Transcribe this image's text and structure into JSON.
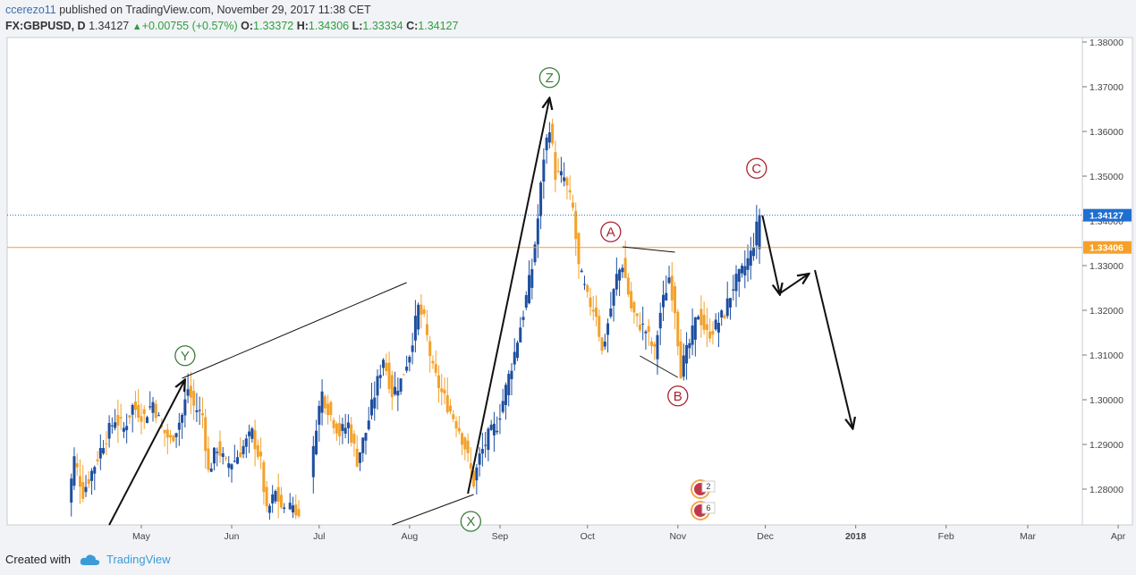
{
  "header": {
    "author": "ccerezo11",
    "published": "published on TradingView.com, November 29, 2017 11:38 CET",
    "symbol": "FX:GBPUSD, D",
    "last": "1.34127",
    "change": "+0.00755 (+0.57%)",
    "o_label": "O:",
    "o": "1.33372",
    "h_label": "H:",
    "h": "1.34306",
    "l_label": "L:",
    "l": "1.33334",
    "c_label": "C:",
    "c": "1.34127"
  },
  "footer": {
    "created_with": "Created with",
    "brand": "TradingView"
  },
  "colors": {
    "up": "#1e4fa0",
    "down": "#f4a12a",
    "green_label": "#3a7d3a",
    "red_label": "#a8232e",
    "price_line": "#1e6fd0",
    "level_line": "#f4a12a"
  },
  "chart_data": {
    "type": "candlestick",
    "symbol": "FX:GBPUSD",
    "interval": "D",
    "ylim": [
      1.272,
      1.381
    ],
    "y_ticks": [
      "1.28000",
      "1.29000",
      "1.30000",
      "1.31000",
      "1.32000",
      "1.33000",
      "1.34000",
      "1.35000",
      "1.36000",
      "1.37000",
      "1.38000"
    ],
    "x_ticks": [
      {
        "label": "May",
        "day": 30
      },
      {
        "label": "Jun",
        "day": 61
      },
      {
        "label": "Jul",
        "day": 91
      },
      {
        "label": "Aug",
        "day": 122
      },
      {
        "label": "Sep",
        "day": 153
      },
      {
        "label": "Oct",
        "day": 183
      },
      {
        "label": "Nov",
        "day": 214
      },
      {
        "label": "Dec",
        "day": 244
      },
      {
        "label": "2018",
        "day": 275
      },
      {
        "label": "Feb",
        "day": 306
      },
      {
        "label": "Mar",
        "day": 334
      },
      {
        "label": "Apr",
        "day": 365
      }
    ],
    "last_price": {
      "label": "1.34127",
      "value": 1.34127
    },
    "level": {
      "label": "1.33406",
      "value": 1.33406
    },
    "wave_labels": [
      {
        "text": "Y",
        "day": 45,
        "price": 1.30985,
        "color": "green"
      },
      {
        "text": "X",
        "day": 143,
        "price": 1.2728,
        "color": "green"
      },
      {
        "text": "Z",
        "day": 170,
        "price": 1.37205,
        "color": "green"
      },
      {
        "text": "A",
        "day": 191,
        "price": 1.33755,
        "color": "red"
      },
      {
        "text": "B",
        "day": 214,
        "price": 1.30085,
        "color": "red"
      },
      {
        "text": "C",
        "day": 241,
        "price": 1.35175,
        "color": "red"
      }
    ],
    "trend_lines": [
      {
        "from": {
          "day": 19,
          "price": 1.272
        },
        "to": {
          "day": 45,
          "price": 1.3045
        },
        "arrow": true
      },
      {
        "from": {
          "day": 44,
          "price": 1.3048
        },
        "to": {
          "day": 121,
          "price": 1.3262
        },
        "arrow": false
      },
      {
        "from": {
          "day": 116,
          "price": 1.272
        },
        "to": {
          "day": 144,
          "price": 1.2788
        },
        "arrow": false
      },
      {
        "from": {
          "day": 142,
          "price": 1.279
        },
        "to": {
          "day": 170,
          "price": 1.3675
        },
        "arrow": true
      },
      {
        "from": {
          "day": 195,
          "price": 1.3342
        },
        "to": {
          "day": 213,
          "price": 1.333
        },
        "arrow": false
      },
      {
        "from": {
          "day": 201,
          "price": 1.3098
        },
        "to": {
          "day": 214,
          "price": 1.305
        },
        "arrow": false
      },
      {
        "from": {
          "day": 243,
          "price": 1.3412
        },
        "to": {
          "day": 249,
          "price": 1.3235
        },
        "arrow": true
      },
      {
        "from": {
          "day": 249,
          "price": 1.3238
        },
        "to": {
          "day": 259,
          "price": 1.3282
        },
        "arrow": true
      },
      {
        "from": {
          "day": 261,
          "price": 1.329
        },
        "to": {
          "day": 274,
          "price": 1.2935
        },
        "arrow": true
      }
    ],
    "events_badges": [
      "2",
      "6"
    ],
    "candles_path": [
      [
        4,
        1.2725
      ],
      [
        7,
        1.2868
      ],
      [
        10,
        1.2792
      ],
      [
        14,
        1.2855
      ],
      [
        17,
        1.2905
      ],
      [
        21,
        1.2958
      ],
      [
        24,
        1.2935
      ],
      [
        27,
        1.2985
      ],
      [
        31,
        1.2962
      ],
      [
        34,
        1.2995
      ],
      [
        37,
        1.2935
      ],
      [
        40,
        1.2908
      ],
      [
        44,
        1.2965
      ],
      [
        46,
        1.3025
      ],
      [
        48,
        1.2985
      ],
      [
        51,
        1.2965
      ],
      [
        53,
        1.2838
      ],
      [
        56,
        1.2895
      ],
      [
        59,
        1.2855
      ],
      [
        62,
        1.2865
      ],
      [
        65,
        1.2895
      ],
      [
        68,
        1.2925
      ],
      [
        71,
        1.2858
      ],
      [
        73,
        1.2745
      ],
      [
        76,
        1.2792
      ],
      [
        79,
        1.2745
      ],
      [
        82,
        1.2765
      ],
      [
        85,
        1.2722
      ],
      [
        87,
        1.2755
      ],
      [
        90,
        1.2948
      ],
      [
        92,
        1.3015
      ],
      [
        95,
        1.2965
      ],
      [
        98,
        1.2925
      ],
      [
        101,
        1.2945
      ],
      [
        104,
        1.2865
      ],
      [
        107,
        1.2928
      ],
      [
        110,
        1.3012
      ],
      [
        113,
        1.3095
      ],
      [
        116,
        1.3015
      ],
      [
        119,
        1.3042
      ],
      [
        122,
        1.3105
      ],
      [
        125,
        1.3205
      ],
      [
        127,
        1.3175
      ],
      [
        130,
        1.3065
      ],
      [
        133,
        1.3015
      ],
      [
        136,
        1.2975
      ],
      [
        139,
        1.2935
      ],
      [
        141,
        1.2895
      ],
      [
        144,
        1.2815
      ],
      [
        146,
        1.2872
      ],
      [
        149,
        1.2918
      ],
      [
        152,
        1.2945
      ],
      [
        155,
        1.3025
      ],
      [
        158,
        1.3105
      ],
      [
        161,
        1.3195
      ],
      [
        164,
        1.3295
      ],
      [
        166,
        1.3405
      ],
      [
        168,
        1.3545
      ],
      [
        170,
        1.3615
      ],
      [
        172,
        1.3505
      ],
      [
        175,
        1.3495
      ],
      [
        178,
        1.3425
      ],
      [
        180,
        1.3295
      ],
      [
        183,
        1.3225
      ],
      [
        186,
        1.3195
      ],
      [
        188,
        1.3105
      ],
      [
        191,
        1.3205
      ],
      [
        193,
        1.3275
      ],
      [
        195,
        1.3305
      ],
      [
        198,
        1.3205
      ],
      [
        200,
        1.3175
      ],
      [
        203,
        1.3155
      ],
      [
        206,
        1.3105
      ],
      [
        208,
        1.3195
      ],
      [
        211,
        1.3275
      ],
      [
        213,
        1.3205
      ],
      [
        215,
        1.3065
      ],
      [
        218,
        1.3125
      ],
      [
        221,
        1.3195
      ],
      [
        224,
        1.3145
      ],
      [
        227,
        1.3165
      ],
      [
        230,
        1.3195
      ],
      [
        233,
        1.3255
      ],
      [
        236,
        1.3285
      ],
      [
        239,
        1.3325
      ],
      [
        242,
        1.3413
      ]
    ]
  }
}
